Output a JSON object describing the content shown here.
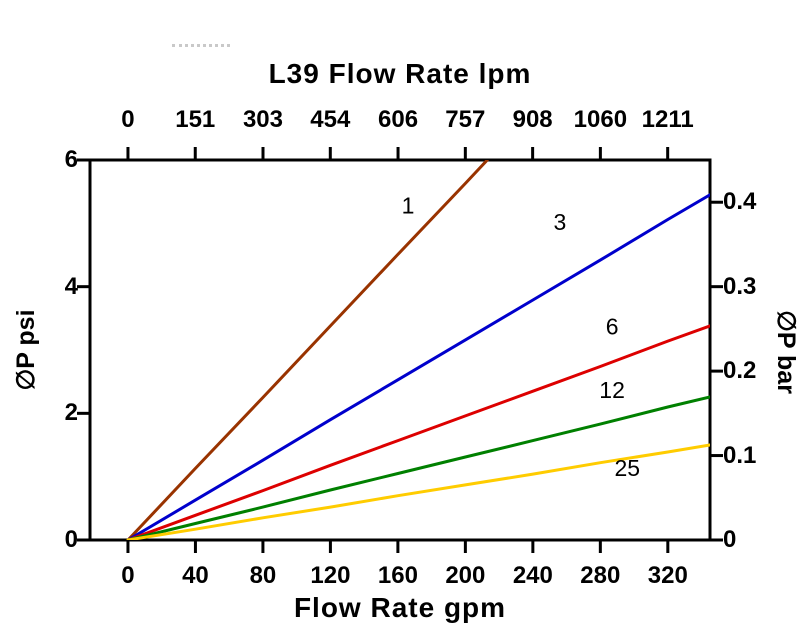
{
  "chart_data": {
    "type": "line",
    "title": "L39 Flow Rate lpm",
    "grid": false,
    "legend": "inline labels on curves",
    "top_axis": {
      "label": "L39 Flow Rate lpm",
      "unit": "lpm",
      "ticks": [
        0,
        151,
        303,
        454,
        606,
        757,
        908,
        1060,
        1211
      ]
    },
    "bottom_axis": {
      "label": "Flow Rate gpm",
      "unit": "gpm",
      "ticks": [
        0,
        40,
        80,
        120,
        160,
        200,
        240,
        280,
        320
      ],
      "range": [
        -22.5,
        345
      ]
    },
    "left_axis": {
      "label": "∅P psi",
      "unit": "psi",
      "ticks": [
        0,
        2,
        4,
        6
      ],
      "range": [
        0,
        6
      ]
    },
    "right_axis": {
      "label": "∅P bar",
      "unit": "bar",
      "ticks": [
        0,
        0.1,
        0.2,
        0.3,
        0.4
      ],
      "range": [
        0,
        0.45
      ]
    },
    "series": [
      {
        "name": "1",
        "color": "#993300",
        "points": [
          [
            0,
            0
          ],
          [
            40,
            1.13
          ],
          [
            80,
            2.25
          ],
          [
            120,
            3.38
          ],
          [
            160,
            4.51
          ],
          [
            200,
            5.63
          ],
          [
            213,
            6.0
          ]
        ],
        "label": {
          "text": "1",
          "x": 166,
          "y": 5.28
        }
      },
      {
        "name": "3",
        "color": "#0000cc",
        "points": [
          [
            0,
            0
          ],
          [
            40,
            0.63
          ],
          [
            80,
            1.26
          ],
          [
            120,
            1.9
          ],
          [
            160,
            2.53
          ],
          [
            200,
            3.16
          ],
          [
            240,
            3.79
          ],
          [
            280,
            4.42
          ],
          [
            320,
            5.06
          ],
          [
            345,
            5.45
          ]
        ],
        "label": {
          "text": "3",
          "x": 256,
          "y": 5.02
        }
      },
      {
        "name": "6",
        "color": "#dd0000",
        "points": [
          [
            0,
            0
          ],
          [
            40,
            0.39
          ],
          [
            80,
            0.78
          ],
          [
            120,
            1.18
          ],
          [
            160,
            1.57
          ],
          [
            200,
            1.96
          ],
          [
            240,
            2.35
          ],
          [
            280,
            2.74
          ],
          [
            320,
            3.14
          ],
          [
            345,
            3.38
          ]
        ],
        "label": {
          "text": "6",
          "x": 287,
          "y": 3.37
        }
      },
      {
        "name": "12",
        "color": "#008000",
        "points": [
          [
            0,
            0
          ],
          [
            40,
            0.26
          ],
          [
            80,
            0.52
          ],
          [
            120,
            0.79
          ],
          [
            160,
            1.05
          ],
          [
            200,
            1.31
          ],
          [
            240,
            1.57
          ],
          [
            280,
            1.83
          ],
          [
            320,
            2.1
          ],
          [
            345,
            2.26
          ]
        ],
        "label": {
          "text": "12",
          "x": 287,
          "y": 2.37
        }
      },
      {
        "name": "25",
        "color": "#ffcc00",
        "points": [
          [
            0,
            0
          ],
          [
            40,
            0.17
          ],
          [
            80,
            0.35
          ],
          [
            120,
            0.52
          ],
          [
            160,
            0.7
          ],
          [
            200,
            0.87
          ],
          [
            240,
            1.04
          ],
          [
            280,
            1.22
          ],
          [
            320,
            1.39
          ],
          [
            345,
            1.5
          ]
        ],
        "label": {
          "text": "25",
          "x": 296,
          "y": 1.14
        }
      }
    ],
    "axis_color": "#000000"
  }
}
